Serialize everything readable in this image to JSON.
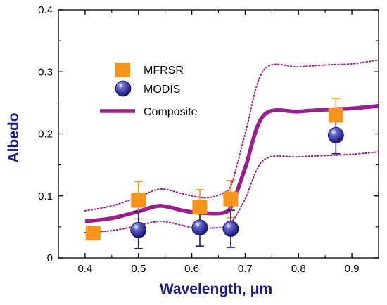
{
  "chart_data": {
    "type": "line",
    "xlabel": "Wavelength, μm",
    "ylabel": "Albedo",
    "xlim": [
      0.35,
      0.95
    ],
    "ylim": [
      0,
      0.4
    ],
    "xticks": [
      "0.4",
      "0.5",
      "0.6",
      "0.7",
      "0.8",
      "0.9"
    ],
    "yticks": [
      "0",
      "0.1",
      "0.2",
      "0.3",
      "0.4"
    ],
    "grid": false,
    "legend_position": "upper-left",
    "colors": {
      "mfrsr": "#f7941d",
      "modis": "#1a1a8c",
      "composite": "#9b1e8e",
      "axis_title": "#1a1a8c"
    },
    "series": [
      {
        "name": "MFRSR",
        "kind": "scatter",
        "marker": "square",
        "points": [
          {
            "x": 0.415,
            "y": 0.04,
            "err": null
          },
          {
            "x": 0.5,
            "y": 0.093,
            "err": 0.03
          },
          {
            "x": 0.615,
            "y": 0.082,
            "err": 0.028
          },
          {
            "x": 0.673,
            "y": 0.095,
            "err": 0.03
          },
          {
            "x": 0.87,
            "y": 0.23,
            "err": 0.027
          }
        ]
      },
      {
        "name": "MODIS",
        "kind": "scatter",
        "marker": "sphere",
        "points": [
          {
            "x": 0.5,
            "y": 0.045,
            "err": 0.03
          },
          {
            "x": 0.615,
            "y": 0.049,
            "err": 0.03
          },
          {
            "x": 0.673,
            "y": 0.047,
            "err": 0.03
          },
          {
            "x": 0.87,
            "y": 0.198,
            "err": 0.03
          }
        ]
      },
      {
        "name": "Composite",
        "kind": "line",
        "x": [
          0.4,
          0.45,
          0.5,
          0.54,
          0.58,
          0.6,
          0.63,
          0.66,
          0.675,
          0.7,
          0.735,
          0.8,
          0.85,
          0.9,
          0.95
        ],
        "y": [
          0.059,
          0.064,
          0.075,
          0.084,
          0.077,
          0.074,
          0.072,
          0.073,
          0.085,
          0.145,
          0.23,
          0.236,
          0.239,
          0.241,
          0.245
        ],
        "upper": [
          0.076,
          0.084,
          0.098,
          0.111,
          0.104,
          0.1,
          0.097,
          0.105,
          0.12,
          0.2,
          0.303,
          0.308,
          0.311,
          0.313,
          0.319
        ],
        "lower": [
          0.041,
          0.044,
          0.052,
          0.059,
          0.053,
          0.049,
          0.048,
          0.05,
          0.058,
          0.095,
          0.158,
          0.163,
          0.165,
          0.167,
          0.171
        ]
      }
    ]
  }
}
